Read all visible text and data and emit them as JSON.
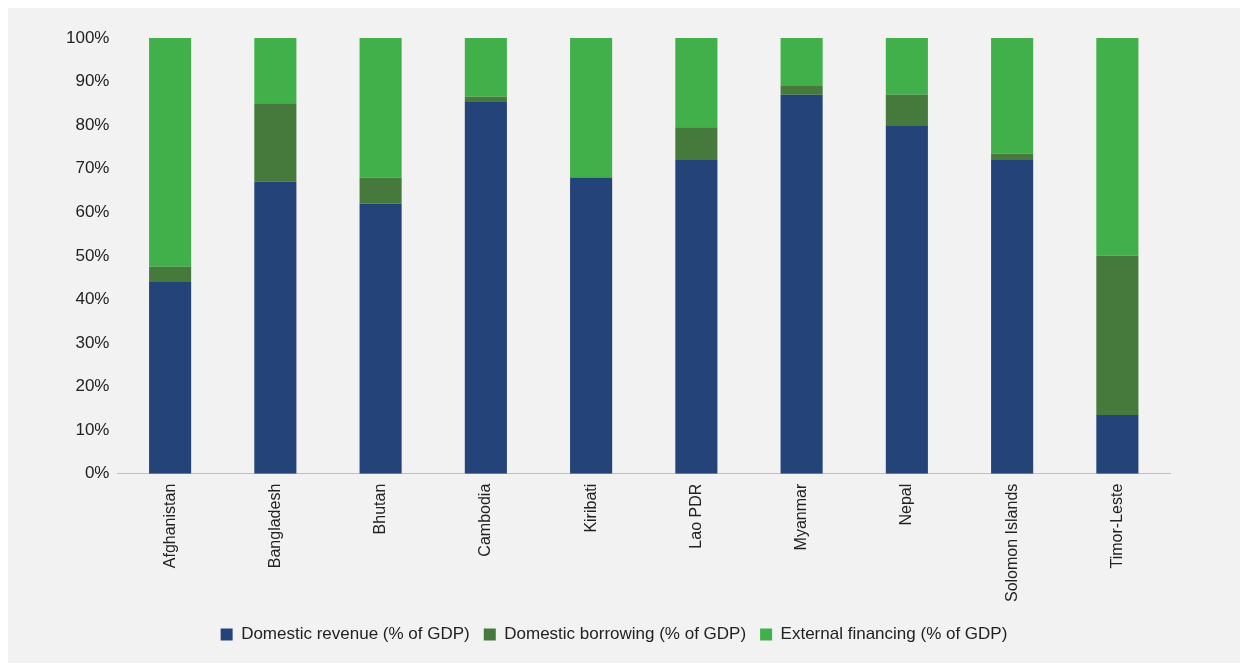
{
  "chart_data": {
    "type": "bar",
    "stacked": true,
    "categories": [
      "Afghanistan",
      "Bangladesh",
      "Bhutan",
      "Cambodia",
      "Kiribati",
      "Lao PDR",
      "Myanmar",
      "Nepal",
      "Solomon Islands",
      "Timor-Leste"
    ],
    "series": [
      {
        "name": "Domestic revenue (% of GDP)",
        "color": "#244479",
        "values": [
          44,
          67,
          62,
          85.5,
          68,
          72,
          87,
          80,
          72,
          13.5
        ]
      },
      {
        "name": "Domestic borrowing (% of GDP)",
        "color": "#467a3c",
        "values": [
          3.5,
          18,
          6,
          1,
          0,
          7.5,
          2,
          7,
          1.5,
          36.5
        ]
      },
      {
        "name": "External financing (% of GDP)",
        "color": "#42b04a",
        "values": [
          52.5,
          15,
          32,
          13.5,
          32,
          20.5,
          11,
          13,
          26.5,
          50
        ]
      }
    ],
    "ylim": [
      0,
      100
    ],
    "yticks": [
      {
        "value": 0,
        "label": "0%"
      },
      {
        "value": 10,
        "label": "10%"
      },
      {
        "value": 20,
        "label": "20%"
      },
      {
        "value": 30,
        "label": "30%"
      },
      {
        "value": 40,
        "label": "40%"
      },
      {
        "value": 50,
        "label": "50%"
      },
      {
        "value": 60,
        "label": "60%"
      },
      {
        "value": 70,
        "label": "70%"
      },
      {
        "value": 80,
        "label": "80%"
      },
      {
        "value": 90,
        "label": "90%"
      },
      {
        "value": 100,
        "label": "100%"
      }
    ],
    "grid": false,
    "legend": "bottom"
  }
}
